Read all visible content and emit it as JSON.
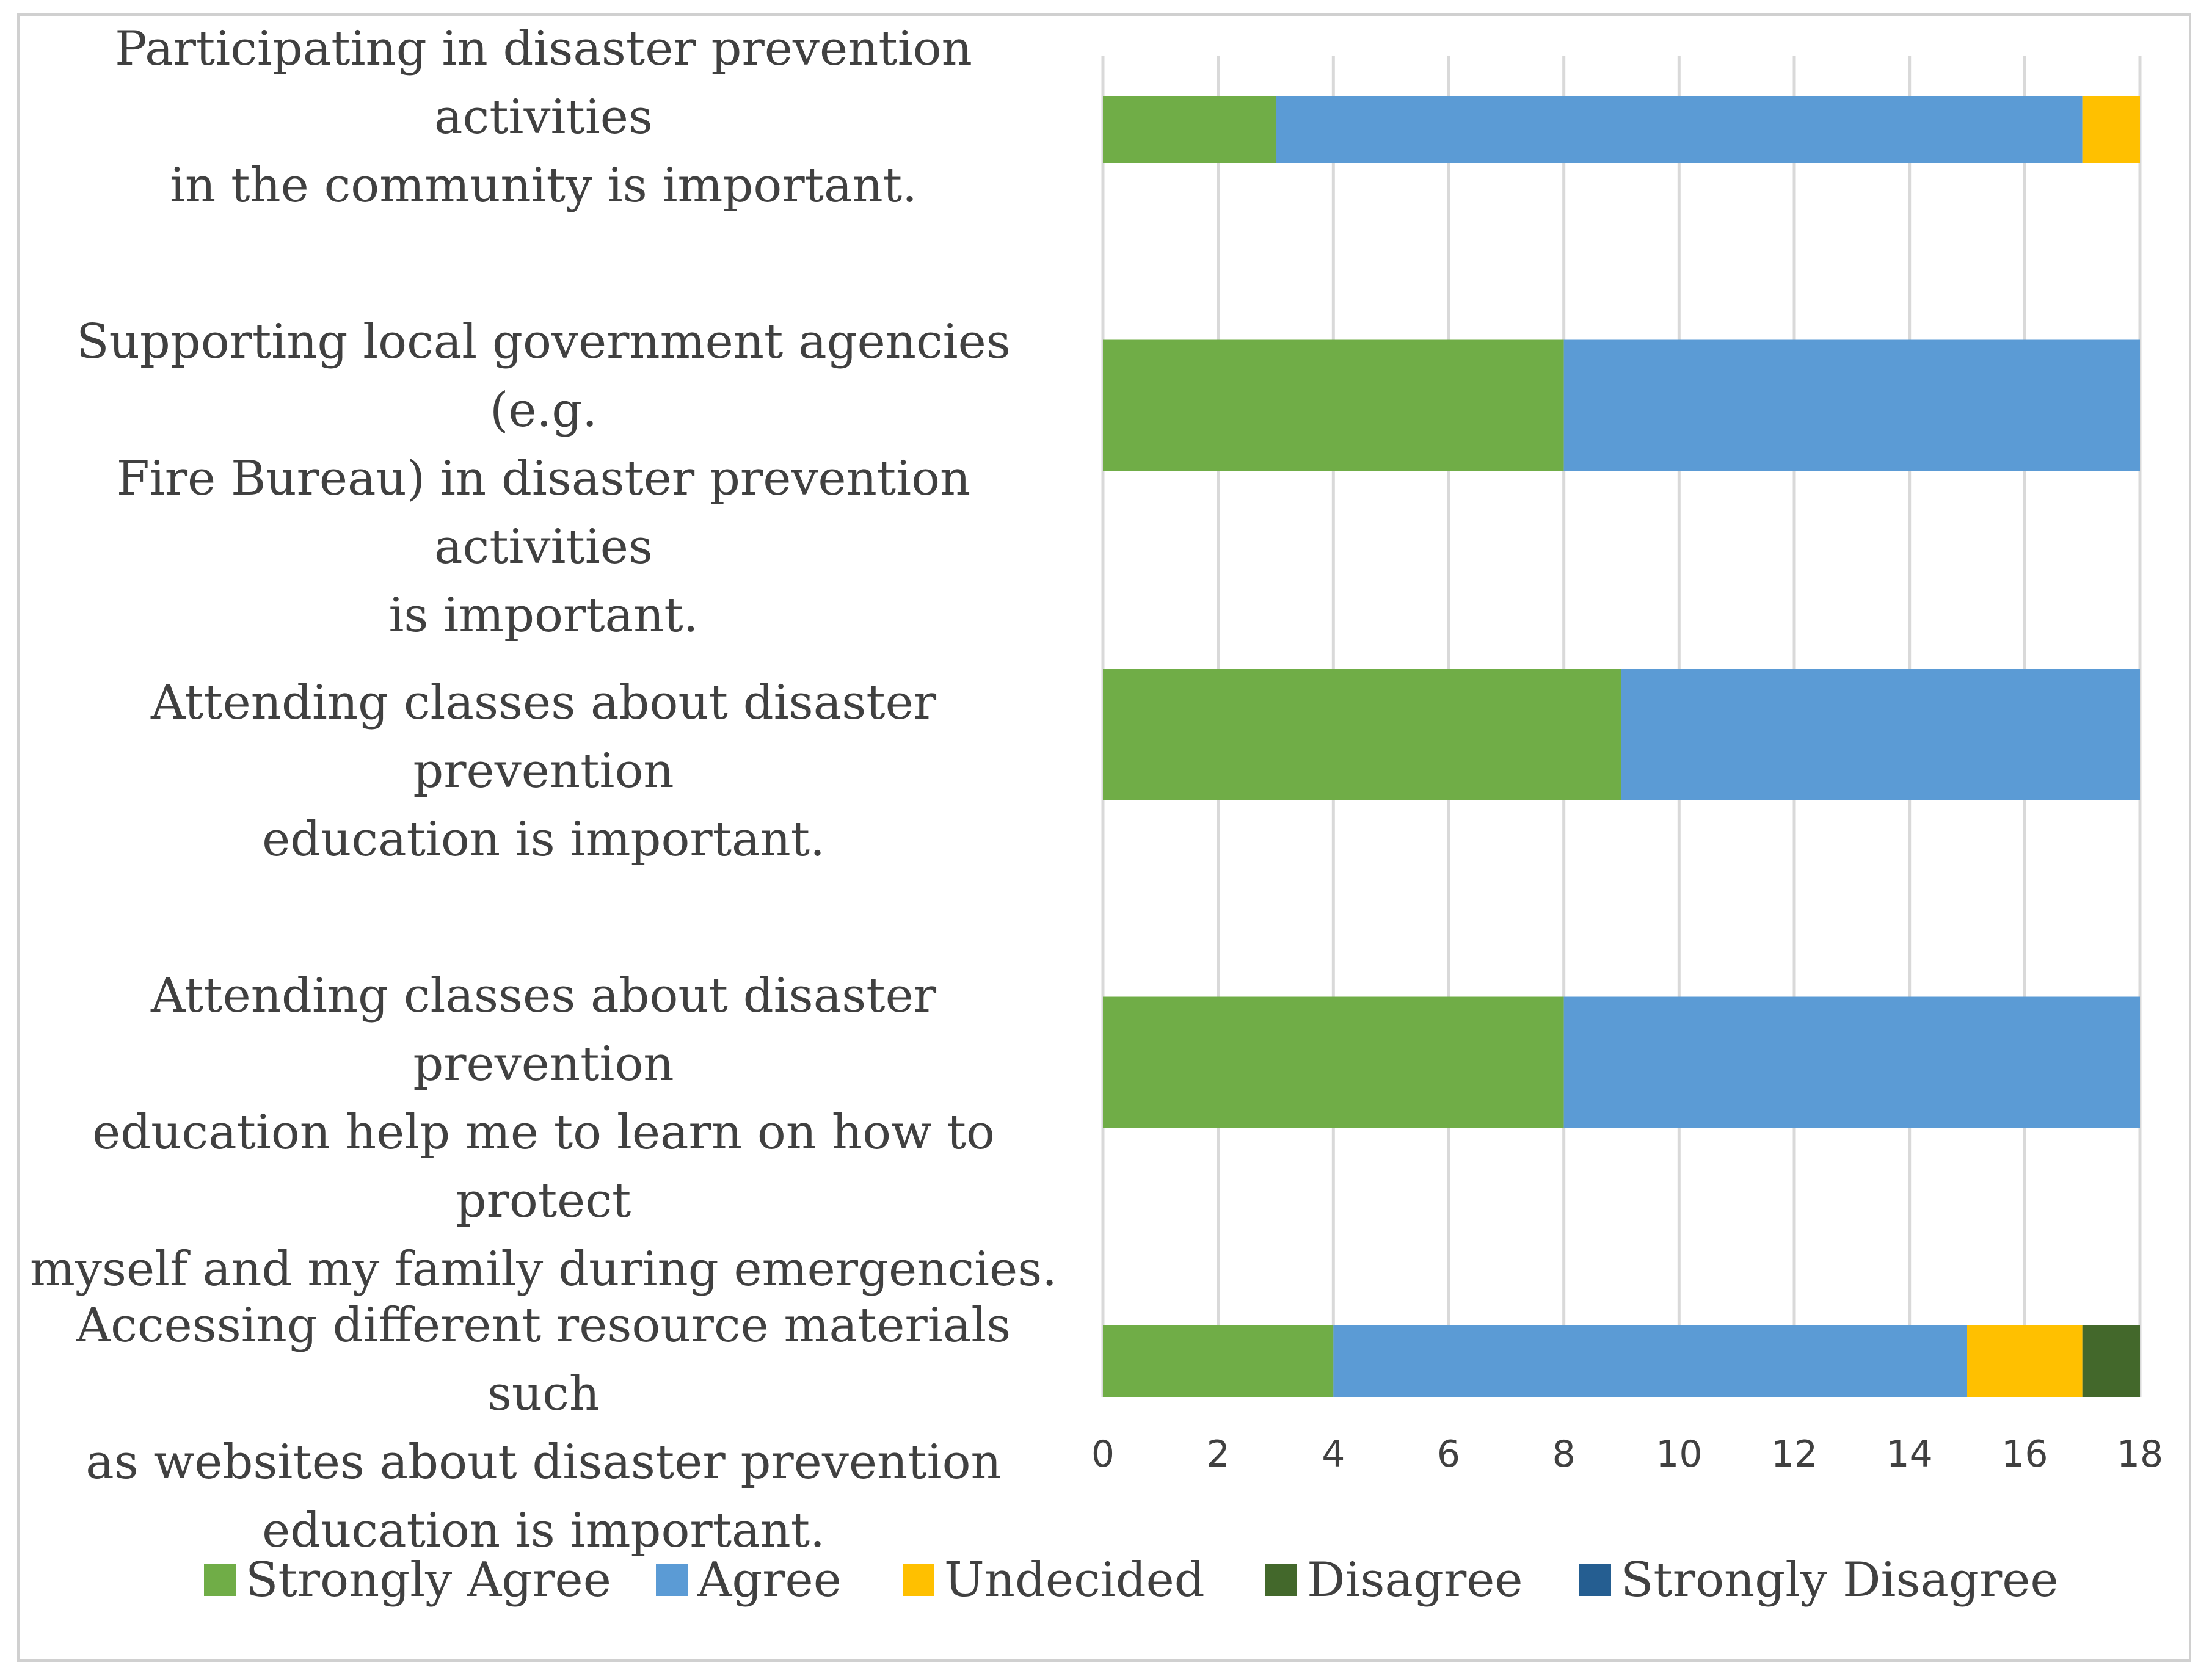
{
  "chart_data": {
    "type": "bar",
    "orientation": "horizontal",
    "stacked": true,
    "categories": [
      [
        "Participating in disaster prevention activities",
        "in the community is important."
      ],
      [
        "Supporting local government agencies (e.g.",
        "Fire Bureau) in disaster prevention activities",
        "is important."
      ],
      [
        "Attending classes about disaster prevention",
        "education is important."
      ],
      [
        "Attending classes about disaster prevention",
        "education help me to learn on how to protect",
        "myself and my family during emergencies."
      ],
      [
        "Accessing different resource materials such",
        "as websites about disaster prevention",
        "education is important."
      ]
    ],
    "series": [
      {
        "name": "Strongly Agree",
        "color": "#70ad47",
        "values": [
          3,
          8,
          9,
          8,
          4
        ]
      },
      {
        "name": "Agree",
        "color": "#5b9bd5",
        "values": [
          14,
          10,
          9,
          10,
          11
        ]
      },
      {
        "name": "Undecided",
        "color": "#ffc000",
        "values": [
          1,
          0,
          0,
          0,
          2
        ]
      },
      {
        "name": "Disagree",
        "color": "#43682b",
        "values": [
          0,
          0,
          0,
          0,
          1
        ]
      },
      {
        "name": "Strongly Disagree",
        "color": "#255e91",
        "values": [
          0,
          0,
          0,
          0,
          0
        ]
      }
    ],
    "x_ticks": [
      "0",
      "2",
      "4",
      "6",
      "8",
      "10",
      "12",
      "14",
      "16",
      "18"
    ],
    "xlim": [
      0,
      18
    ],
    "grid": true,
    "legend_position": "bottom"
  }
}
